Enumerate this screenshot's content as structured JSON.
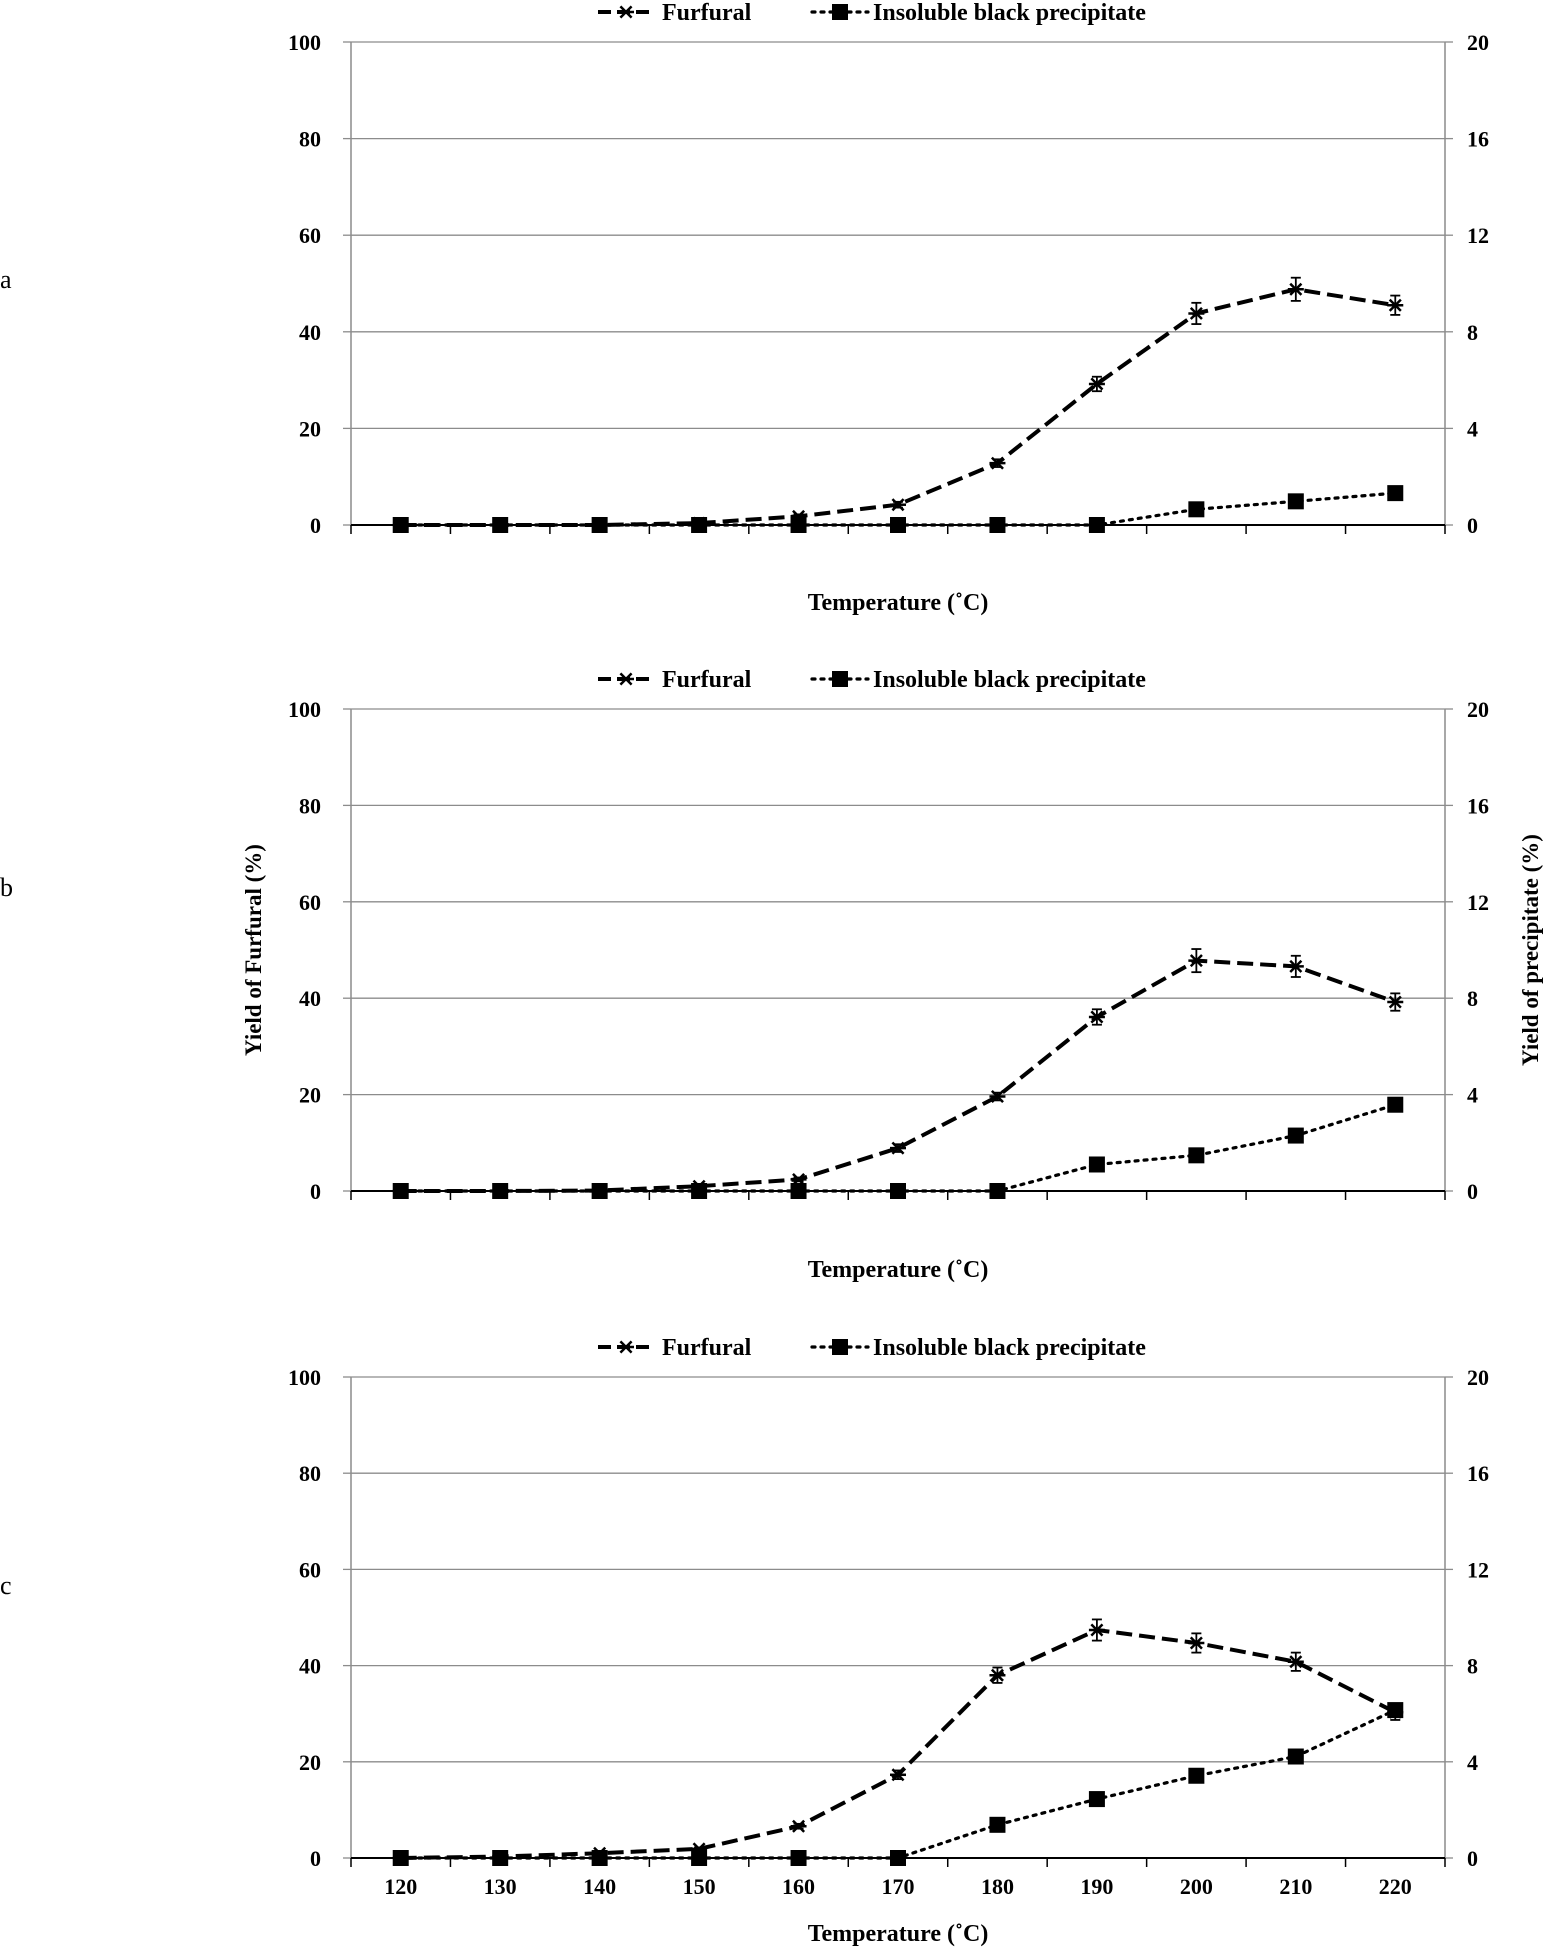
{
  "chart_data": [
    {
      "type": "line",
      "panel_label": "a",
      "x": [
        120,
        130,
        140,
        150,
        160,
        170,
        180,
        190,
        200,
        210,
        220
      ],
      "xlabel": "Temperature (˚C)",
      "ylabel": "",
      "y2label": "",
      "ylim": [
        0,
        100
      ],
      "y2lim": [
        0,
        20
      ],
      "yticks": [
        "0",
        "20",
        "40",
        "60",
        "80",
        "100"
      ],
      "y2ticks": [
        "0",
        "4",
        "8",
        "12",
        "16",
        "20"
      ],
      "show_xtick_labels": false,
      "grid": true,
      "legend_position": "top",
      "series": [
        {
          "name": "Furfural",
          "axis": "left",
          "style": "dashed",
          "marker": "asterisk",
          "values": [
            0,
            0,
            0,
            0.4,
            1.8,
            4.2,
            12.8,
            29.2,
            43.8,
            48.8,
            45.5
          ],
          "errors": [
            0,
            0,
            0,
            0,
            0.4,
            0.6,
            0.8,
            1.5,
            2.2,
            2.4,
            2.0
          ]
        },
        {
          "name": "Insoluble black precipitate",
          "axis": "right",
          "style": "dotted",
          "marker": "square",
          "values": [
            0,
            0,
            0,
            0,
            0,
            0,
            0,
            0,
            0.65,
            0.98,
            1.32
          ],
          "errors": [
            0,
            0,
            0,
            0,
            0,
            0,
            0,
            0,
            0,
            0,
            0
          ]
        }
      ]
    },
    {
      "type": "line",
      "panel_label": "b",
      "x": [
        120,
        130,
        140,
        150,
        160,
        170,
        180,
        190,
        200,
        210,
        220
      ],
      "xlabel": "Temperature (˚C)",
      "ylabel": "Yield of Furfural (%)",
      "y2label": "Yield of precipitate (%)",
      "ylim": [
        0,
        100
      ],
      "y2lim": [
        0,
        20
      ],
      "yticks": [
        "0",
        "20",
        "40",
        "60",
        "80",
        "100"
      ],
      "y2ticks": [
        "0",
        "4",
        "8",
        "12",
        "16",
        "20"
      ],
      "show_xtick_labels": false,
      "grid": true,
      "legend_position": "top",
      "series": [
        {
          "name": "Furfural",
          "axis": "left",
          "style": "dashed",
          "marker": "asterisk",
          "values": [
            0,
            0,
            0.1,
            1.0,
            2.4,
            8.9,
            19.6,
            36.1,
            47.8,
            46.6,
            39.2
          ],
          "errors": [
            0,
            0,
            0,
            0,
            0.4,
            0.8,
            0.8,
            1.6,
            2.4,
            2.2,
            1.8
          ]
        },
        {
          "name": "Insoluble black precipitate",
          "axis": "right",
          "style": "dotted",
          "marker": "square",
          "values": [
            0,
            0,
            0,
            0,
            0,
            0,
            0,
            1.1,
            1.48,
            2.3,
            3.58
          ],
          "errors": [
            0,
            0,
            0,
            0,
            0,
            0,
            0,
            0,
            0,
            0,
            0
          ]
        }
      ]
    },
    {
      "type": "line",
      "panel_label": "c",
      "x": [
        120,
        130,
        140,
        150,
        160,
        170,
        180,
        190,
        200,
        210,
        220
      ],
      "xticks": [
        "120",
        "130",
        "140",
        "150",
        "160",
        "170",
        "180",
        "190",
        "200",
        "210",
        "220"
      ],
      "xlabel": "Temperature (˚C)",
      "ylabel": "",
      "y2label": "",
      "ylim": [
        0,
        100
      ],
      "y2lim": [
        0,
        20
      ],
      "yticks": [
        "0",
        "20",
        "40",
        "60",
        "80",
        "100"
      ],
      "y2ticks": [
        "0",
        "4",
        "8",
        "12",
        "16",
        "20"
      ],
      "show_xtick_labels": true,
      "grid": true,
      "legend_position": "top",
      "series": [
        {
          "name": "Furfural",
          "axis": "left",
          "style": "dashed",
          "marker": "asterisk",
          "values": [
            0,
            0.3,
            1.0,
            1.9,
            6.6,
            17.3,
            38.0,
            47.4,
            44.7,
            40.8,
            30.3
          ],
          "errors": [
            0,
            0,
            0,
            0.3,
            0.5,
            0.9,
            1.6,
            2.2,
            2.0,
            1.9,
            1.6
          ]
        },
        {
          "name": "Insoluble black precipitate",
          "axis": "right",
          "style": "dotted",
          "marker": "square",
          "values": [
            0,
            0,
            0,
            0,
            0,
            0,
            1.38,
            2.45,
            3.42,
            4.22,
            6.15
          ],
          "errors": [
            0,
            0,
            0,
            0,
            0,
            0,
            0,
            0,
            0,
            0,
            0
          ]
        }
      ]
    }
  ]
}
